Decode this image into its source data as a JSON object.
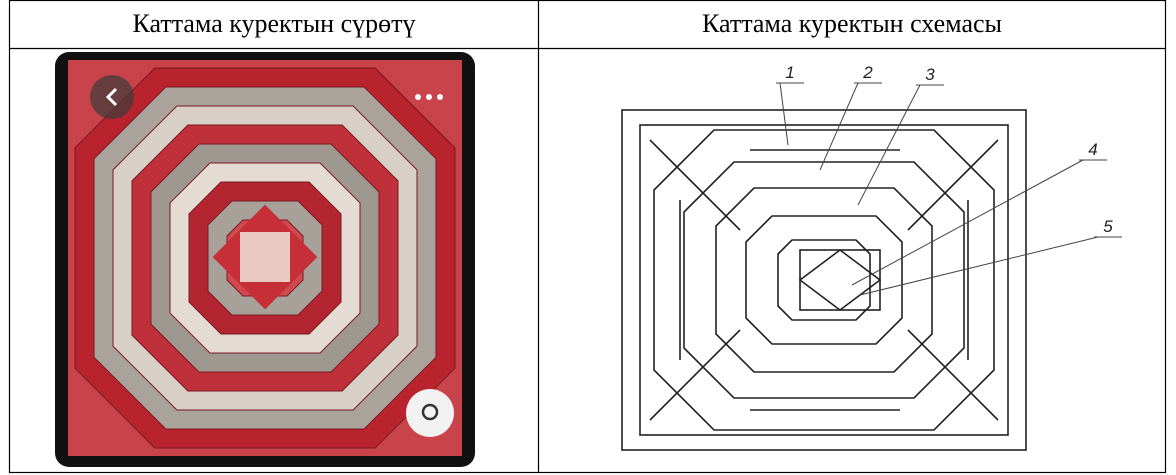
{
  "table": {
    "headers": [
      "Каттама куректын сүрөтү",
      "Каттама куректын схемасы"
    ]
  },
  "scheme": {
    "labels": [
      "1",
      "2",
      "3",
      "4",
      "5"
    ]
  }
}
